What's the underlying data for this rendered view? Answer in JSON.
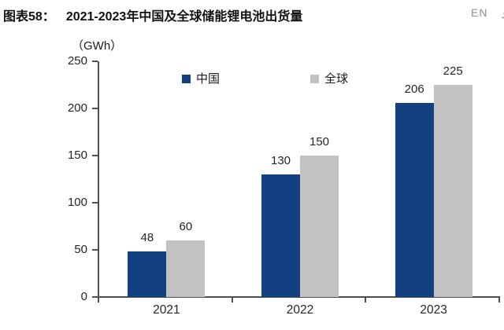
{
  "header": {
    "figure_label": "图表58：",
    "title": "2021-2023年中国及全球储能锂电池出货量",
    "lang_toggle": "EN"
  },
  "chart_data": {
    "type": "bar",
    "title": "2021-2023年中国及全球储能锂电池出货量",
    "unit_label": "（GWh）",
    "categories": [
      "2021",
      "2022",
      "2023"
    ],
    "series": [
      {
        "name": "中国",
        "color": "#134180",
        "values": [
          48,
          130,
          206
        ]
      },
      {
        "name": "全球",
        "color": "#c2c2c3",
        "values": [
          60,
          150,
          225
        ]
      }
    ],
    "ylim": [
      0,
      250
    ],
    "yticks": [
      0,
      50,
      100,
      150,
      200,
      250
    ],
    "xlabel": "",
    "ylabel": "（GWh）",
    "grid": false,
    "legend_position": "top",
    "bar_value_labels": true,
    "colors": {
      "axis": "#4f4f4f",
      "text": "#262626"
    }
  }
}
